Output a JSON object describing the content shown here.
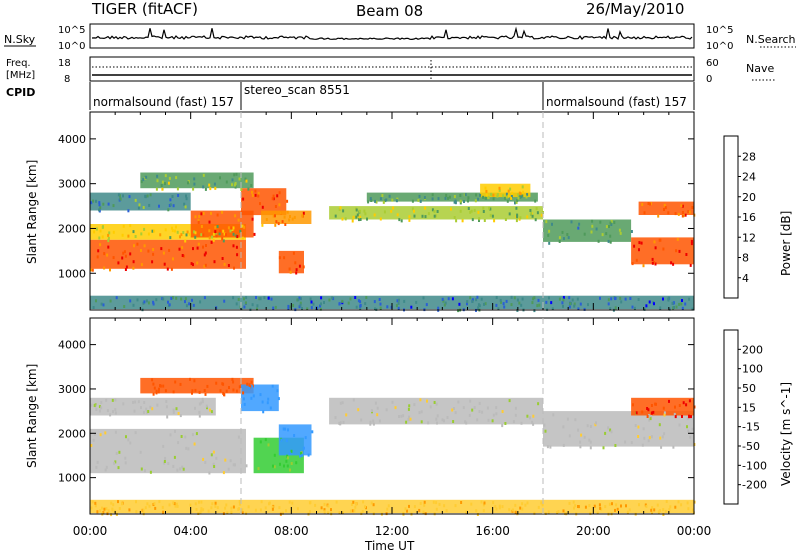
{
  "header": {
    "title": "TIGER (fitACF)",
    "beam": "Beam 08",
    "date": "26/May/2010"
  },
  "top_panels": {
    "nsky_label": "N.Sky",
    "nsky_ticks": [
      "10^5",
      "10^0"
    ],
    "nsearch_label": "N.Search",
    "nsearch_ticks": [
      "10^5",
      "10^0"
    ],
    "freq_label_1": "Freq.",
    "freq_label_2": "[MHz]",
    "freq_ticks": [
      "18",
      "8"
    ],
    "nave_label": "Nave",
    "nave_ticks": [
      "60",
      "0"
    ],
    "cpid_label": "CPID",
    "cpid_segments": [
      {
        "label": "normalsound (fast) 157",
        "start_h": 0,
        "end_h": 6
      },
      {
        "label": "stereo_scan 8551",
        "start_h": 6,
        "end_h": 18
      },
      {
        "label": "normalsound (fast) 157",
        "start_h": 18,
        "end_h": 24
      }
    ]
  },
  "colors": {
    "power": [
      "#0000ff",
      "#2a5fd6",
      "#3f8a8a",
      "#4f9a5a",
      "#aacc33",
      "#ffcc00",
      "#ff9900",
      "#ff5500",
      "#ee0000"
    ],
    "velocity": [
      "#0033cc",
      "#3399ff",
      "#33cc33",
      "#99cc33",
      "#bbbbbb",
      "#ffcc33",
      "#ff9900",
      "#ff5500",
      "#ee0000"
    ]
  },
  "chart_data": [
    {
      "type": "heatmap",
      "title": "",
      "xlabel": "Time UT",
      "ylabel": "Slant Range [km]",
      "xlim": [
        0,
        24
      ],
      "ylim": [
        180,
        4600
      ],
      "x_ticks": [
        "00:00",
        "04:00",
        "08:00",
        "12:00",
        "16:00",
        "20:00",
        "00:00"
      ],
      "y_ticks": [
        1000,
        2000,
        3000,
        4000
      ],
      "colorbar_label": "Power [dB]",
      "colorbar_ticks": [
        4,
        8,
        12,
        16,
        20,
        24,
        28
      ],
      "colorbar_range": [
        0,
        32
      ],
      "regions": [
        {
          "x": [
            0.0,
            6.2
          ],
          "y": [
            1100,
            1750
          ],
          "value": 28
        },
        {
          "x": [
            0.0,
            6.2
          ],
          "y": [
            1750,
            2100
          ],
          "value": 18
        },
        {
          "x": [
            0.0,
            4.0
          ],
          "y": [
            2400,
            2800
          ],
          "value": 10
        },
        {
          "x": [
            2.0,
            6.5
          ],
          "y": [
            2900,
            3250
          ],
          "value": 14
        },
        {
          "x": [
            4.0,
            6.5
          ],
          "y": [
            1800,
            2400
          ],
          "value": 26
        },
        {
          "x": [
            6.0,
            7.8
          ],
          "y": [
            2300,
            2900
          ],
          "value": 26
        },
        {
          "x": [
            6.8,
            8.8
          ],
          "y": [
            2100,
            2400
          ],
          "value": 24
        },
        {
          "x": [
            7.5,
            8.5
          ],
          "y": [
            1000,
            1500
          ],
          "value": 28
        },
        {
          "x": [
            9.5,
            18.0
          ],
          "y": [
            2200,
            2500
          ],
          "value": 16
        },
        {
          "x": [
            11.0,
            17.8
          ],
          "y": [
            2600,
            2800
          ],
          "value": 12
        },
        {
          "x": [
            15.5,
            17.5
          ],
          "y": [
            2700,
            3000
          ],
          "value": 20
        },
        {
          "x": [
            18.0,
            21.5
          ],
          "y": [
            1700,
            2200
          ],
          "value": 12
        },
        {
          "x": [
            21.5,
            24.0
          ],
          "y": [
            1200,
            1800
          ],
          "value": 28
        },
        {
          "x": [
            21.8,
            24.0
          ],
          "y": [
            2300,
            2600
          ],
          "value": 26
        },
        {
          "x": [
            0.0,
            24.0
          ],
          "y": [
            200,
            500
          ],
          "value": 8
        }
      ]
    },
    {
      "type": "heatmap",
      "title": "",
      "xlabel": "Time UT",
      "ylabel": "Slant Range [km]",
      "xlim": [
        0,
        24
      ],
      "ylim": [
        180,
        4600
      ],
      "x_ticks": [
        "00:00",
        "04:00",
        "08:00",
        "12:00",
        "16:00",
        "20:00",
        "00:00"
      ],
      "y_ticks": [
        1000,
        2000,
        3000,
        4000
      ],
      "colorbar_label": "Velocity [m s^-1]",
      "colorbar_ticks": [
        "200",
        "100",
        "50",
        "15",
        "-15",
        "-50",
        "-100",
        "-200"
      ],
      "regions": [
        {
          "x": [
            0.0,
            6.2
          ],
          "y": [
            1100,
            2100
          ],
          "value": 0
        },
        {
          "x": [
            0.0,
            5.0
          ],
          "y": [
            2400,
            2800
          ],
          "value": 0
        },
        {
          "x": [
            2.0,
            6.5
          ],
          "y": [
            2900,
            3250
          ],
          "value": -150
        },
        {
          "x": [
            6.5,
            8.5
          ],
          "y": [
            1100,
            1900
          ],
          "value": 60
        },
        {
          "x": [
            7.5,
            8.8
          ],
          "y": [
            1500,
            2200
          ],
          "value": 180
        },
        {
          "x": [
            6.0,
            7.5
          ],
          "y": [
            2500,
            3100
          ],
          "value": 180
        },
        {
          "x": [
            9.5,
            18.0
          ],
          "y": [
            2200,
            2800
          ],
          "value": 0
        },
        {
          "x": [
            18.0,
            24.0
          ],
          "y": [
            1700,
            2500
          ],
          "value": 0
        },
        {
          "x": [
            21.5,
            24.0
          ],
          "y": [
            2400,
            2800
          ],
          "value": -200
        },
        {
          "x": [
            0.0,
            24.0
          ],
          "y": [
            200,
            500
          ],
          "value": -40
        }
      ]
    }
  ]
}
